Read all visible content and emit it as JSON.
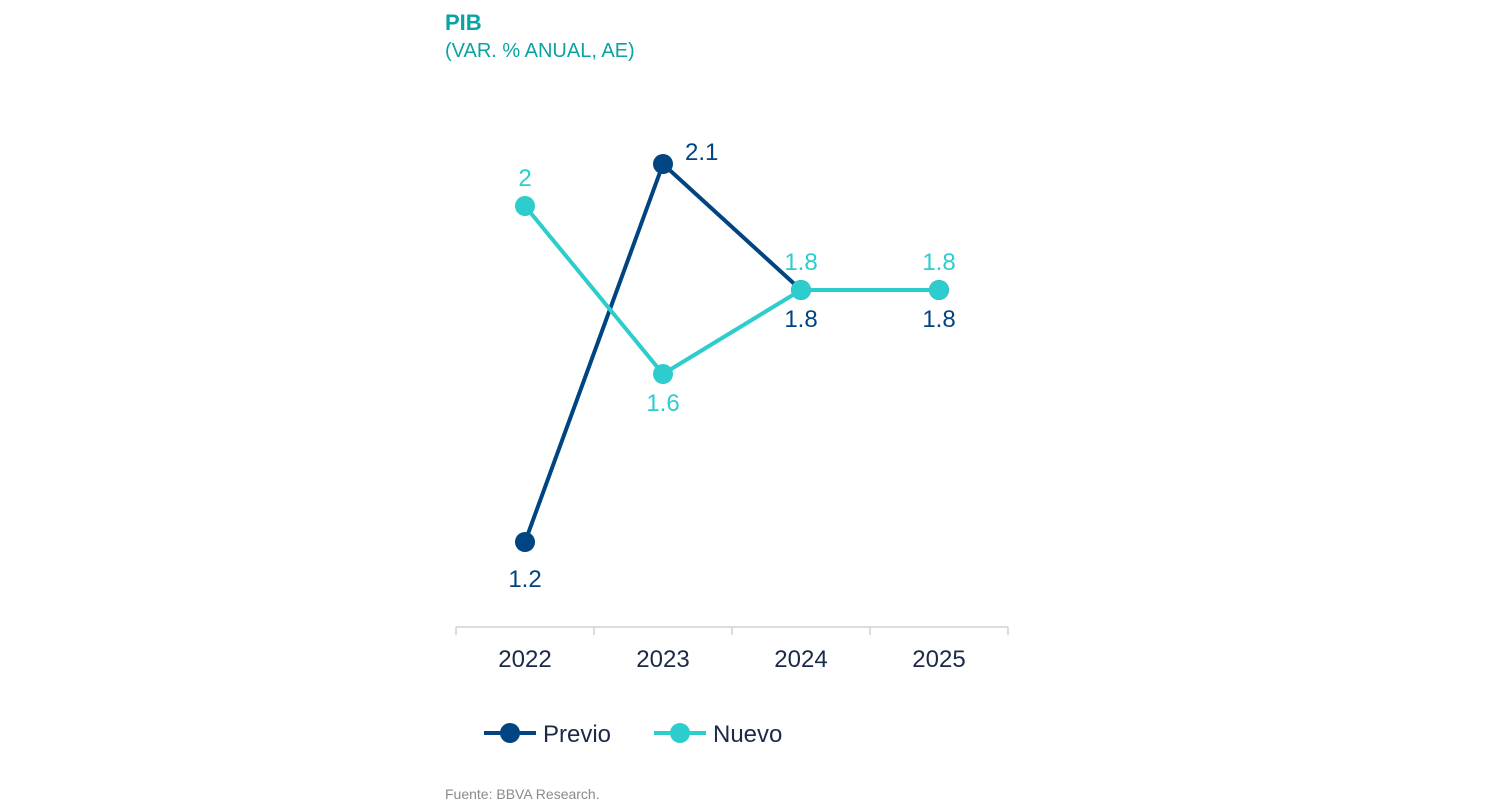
{
  "chart_data": {
    "type": "line",
    "title": "PIB",
    "subtitle": "(VAR. % ANUAL, AE)",
    "categories": [
      "2022",
      "2023",
      "2024",
      "2025"
    ],
    "series": [
      {
        "name": "Previo",
        "values": [
          1.2,
          2.1,
          1.8,
          1.8
        ],
        "color": "#004481",
        "label_pos": [
          "below",
          "right",
          "below",
          "below"
        ]
      },
      {
        "name": "Nuevo",
        "values": [
          2.0,
          1.6,
          1.8,
          1.8
        ],
        "color": "#2dcccd",
        "label_pos": [
          "above",
          "below",
          "above",
          "above"
        ]
      }
    ],
    "data_labels": {
      "Previo": [
        "1.2",
        "2.1",
        "1.8",
        "1.8"
      ],
      "Nuevo": [
        "2",
        "1.6",
        "1.8",
        "1.8"
      ]
    },
    "ylim": [
      1.0,
      2.2
    ],
    "grid": false,
    "legend_position": "bottom-left"
  },
  "source": "Fuente: BBVA Research."
}
